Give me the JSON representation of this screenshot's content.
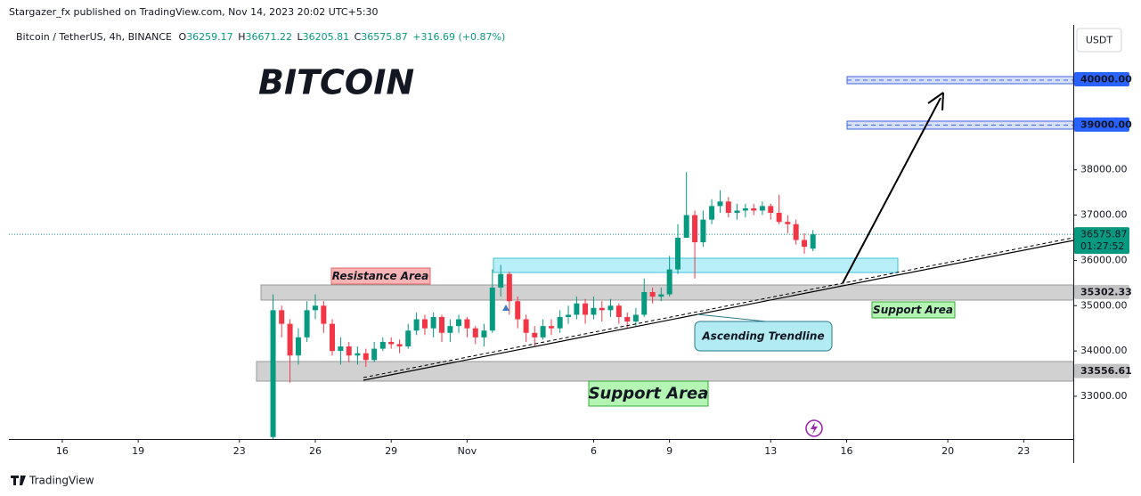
{
  "published": "Stargazer_fx published on TradingView.com, Nov 14, 2023 20:02 UTC+5:30",
  "footer": "TradingView",
  "chart_data": {
    "type": "candlestick",
    "title": "BITCOIN",
    "symbol": "Bitcoin / TetherUS, 4h, BINANCE",
    "ohlc_labels": [
      "O",
      "H",
      "L",
      "C"
    ],
    "change": "+316.69 (+0.87%)",
    "y_unit": "USDT",
    "countdown": "01:27:52",
    "up_color": "#089981",
    "down_color": "#f23645",
    "x": [
      24.33,
      24.67,
      25,
      25.33,
      25.67,
      26,
      26.33,
      26.67,
      27,
      27.33,
      27.67,
      28,
      28.33,
      28.67,
      29,
      29.33,
      29.67,
      30,
      30.33,
      30.67,
      31,
      31.33,
      31.67,
      32,
      32.33,
      32.67,
      33,
      33.33,
      33.67,
      34,
      34.33,
      34.67,
      35,
      35.33,
      35.67,
      36,
      36.33,
      36.67,
      37,
      37.33,
      37.67,
      38,
      38.33,
      38.67,
      39,
      39.33,
      39.67,
      40,
      40.33,
      40.67,
      41,
      41.33,
      41.67,
      42,
      42.33,
      42.67,
      43,
      43.33,
      43.67,
      44,
      44.33,
      44.67,
      45,
      45.33,
      45.67
    ],
    "open": [
      32100,
      34900,
      34600,
      33900,
      34300,
      34900,
      35000,
      34600,
      34000,
      34100,
      33900,
      33950,
      33800,
      34050,
      34200,
      34150,
      34100,
      34450,
      34700,
      34500,
      34750,
      34400,
      34550,
      34700,
      34500,
      34300,
      34450,
      35400,
      35700,
      35100,
      34700,
      34400,
      34300,
      34550,
      34500,
      34750,
      34800,
      35050,
      34800,
      34950,
      34900,
      35000,
      34750,
      34650,
      34800,
      35300,
      35200,
      35250,
      35800,
      36500,
      37000,
      36400,
      36900,
      37200,
      37300,
      37050,
      37100,
      37150,
      37100,
      37200,
      37050,
      36850,
      36800,
      36450,
      36259.17
    ],
    "high": [
      35250,
      35000,
      34700,
      34500,
      35100,
      35250,
      35100,
      34700,
      34300,
      34200,
      34100,
      34050,
      34200,
      34300,
      34300,
      34250,
      34600,
      34850,
      34800,
      34850,
      34800,
      34700,
      34800,
      34750,
      34550,
      34600,
      35800,
      35900,
      35750,
      35200,
      34800,
      34550,
      34700,
      34700,
      34900,
      35000,
      35200,
      35150,
      35200,
      35100,
      35150,
      35050,
      34850,
      34950,
      35600,
      35400,
      35400,
      36100,
      36800,
      37950,
      37100,
      37100,
      37350,
      37550,
      37400,
      37250,
      37250,
      37250,
      37300,
      37250,
      37450,
      37000,
      36900,
      36600,
      36671.22
    ],
    "low": [
      32050,
      34300,
      33300,
      33700,
      34200,
      34700,
      34400,
      33900,
      33700,
      33750,
      33700,
      33650,
      33750,
      34000,
      34050,
      33950,
      34050,
      34350,
      34350,
      34300,
      34200,
      34200,
      34400,
      34300,
      34150,
      34100,
      34400,
      35200,
      34800,
      34500,
      34200,
      34100,
      34250,
      34350,
      34400,
      34600,
      34700,
      34600,
      34700,
      34650,
      34750,
      34600,
      34500,
      34550,
      34750,
      35050,
      35100,
      35200,
      35700,
      36500,
      35600,
      36300,
      36800,
      37050,
      36950,
      36900,
      36950,
      37000,
      37000,
      36900,
      36800,
      36600,
      36350,
      36150,
      36205.81
    ],
    "close": [
      34900,
      34600,
      33900,
      34300,
      34900,
      35000,
      34600,
      34000,
      34100,
      33900,
      33950,
      33800,
      34050,
      34200,
      34150,
      34100,
      34450,
      34700,
      34500,
      34750,
      34400,
      34550,
      34700,
      34500,
      34300,
      34450,
      35400,
      35700,
      35100,
      34700,
      34400,
      34300,
      34550,
      34500,
      34750,
      34800,
      35050,
      34800,
      34950,
      34900,
      35000,
      34750,
      34650,
      34800,
      35300,
      35200,
      35250,
      35800,
      36500,
      37000,
      36400,
      36900,
      37200,
      37300,
      37050,
      37100,
      37150,
      37100,
      37200,
      37050,
      36850,
      36800,
      36450,
      36300,
      36575.87
    ],
    "xlim": [
      13.89,
      55.96
    ],
    "xticks": [
      16,
      19,
      23,
      26,
      29,
      {
        "value": 32,
        "label": "Nov"
      },
      {
        "value": 37,
        "label": "6"
      },
      {
        "value": 40,
        "label": "9"
      },
      {
        "value": 44,
        "label": "13"
      },
      {
        "value": 47,
        "label": "16"
      },
      {
        "value": 51,
        "label": "20"
      },
      {
        "value": 54,
        "label": "23"
      }
    ],
    "ylim": [
      32056,
      41199
    ],
    "yticks": [
      {
        "value": 33000,
        "label": "33000.00"
      },
      {
        "value": 34000,
        "label": "34000.00"
      },
      {
        "value": 35000,
        "label": "35000.00"
      },
      {
        "value": 36000,
        "label": "36000.00"
      },
      {
        "value": 37000,
        "label": "37000.00"
      },
      {
        "value": 38000,
        "label": "38000.00"
      }
    ],
    "levels": [
      {
        "value": 40000,
        "label": "40000.00",
        "color": "#2962ff",
        "text_color": "#ffffff"
      },
      {
        "value": 39000,
        "label": "39000.00",
        "color": "#2962ff",
        "text_color": "#ffffff"
      },
      {
        "value": 35302.33,
        "label": "35302.33",
        "color": "#c4c4c4",
        "text_color": "#131722"
      },
      {
        "value": 33556.61,
        "label": "33556.61",
        "color": "#c4c4c4",
        "text_color": "#131722"
      }
    ],
    "annotations": {
      "resistance": "Resistance Area",
      "support_upper": "Support Area",
      "support_lower": "Support Area",
      "trendline": "Ascending Trendline"
    }
  }
}
